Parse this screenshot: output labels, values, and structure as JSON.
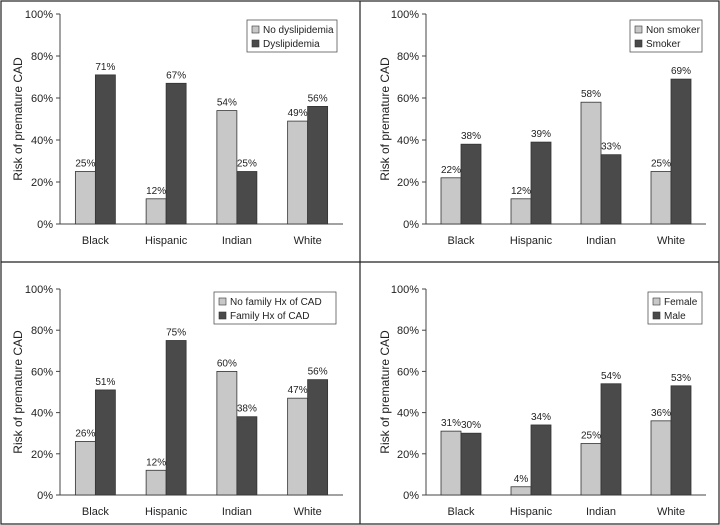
{
  "colors": {
    "series1": "#c8c8c8",
    "series2": "#4a4a4a"
  },
  "chart_data": [
    {
      "type": "bar",
      "categories": [
        "Black",
        "Hispanic",
        "Indian",
        "White"
      ],
      "series": [
        {
          "name": "No dyslipidemia",
          "values": [
            25,
            12,
            54,
            49
          ],
          "labels": [
            "25%",
            "12%",
            "54%",
            "49%"
          ]
        },
        {
          "name": "Dyslipidemia",
          "values": [
            71,
            67,
            25,
            56
          ],
          "labels": [
            "71%",
            "67%",
            "25%",
            "56%"
          ]
        }
      ],
      "ylabel": "Risk of premature CAD",
      "ylim": [
        0,
        100
      ],
      "yticks": [
        "0%",
        "20%",
        "40%",
        "60%",
        "80%",
        "100%"
      ],
      "legend": "top-right"
    },
    {
      "type": "bar",
      "categories": [
        "Black",
        "Hispanic",
        "Indian",
        "White"
      ],
      "series": [
        {
          "name": "Non smoker",
          "values": [
            22,
            12,
            58,
            25
          ],
          "labels": [
            "22%",
            "12%",
            "58%",
            "25%"
          ]
        },
        {
          "name": "Smoker",
          "values": [
            38,
            39,
            33,
            69
          ],
          "labels": [
            "38%",
            "39%",
            "33%",
            "69%"
          ]
        }
      ],
      "ylabel": "Risk of premature CAD",
      "ylim": [
        0,
        100
      ],
      "yticks": [
        "0%",
        "20%",
        "40%",
        "60%",
        "80%",
        "100%"
      ],
      "legend": "top-right"
    },
    {
      "type": "bar",
      "categories": [
        "Black",
        "Hispanic",
        "Indian",
        "White"
      ],
      "series": [
        {
          "name": "No family Hx of CAD",
          "values": [
            26,
            12,
            60,
            47
          ],
          "labels": [
            "26%",
            "12%",
            "60%",
            "47%"
          ]
        },
        {
          "name": "Family Hx of CAD",
          "values": [
            51,
            75,
            38,
            56
          ],
          "labels": [
            "51%",
            "75%",
            "38%",
            "56%"
          ]
        }
      ],
      "ylabel": "Risk of premature CAD",
      "ylim": [
        0,
        100
      ],
      "yticks": [
        "0%",
        "20%",
        "40%",
        "60%",
        "80%",
        "100%"
      ],
      "legend": "top-right"
    },
    {
      "type": "bar",
      "categories": [
        "Black",
        "Hispanic",
        "Indian",
        "White"
      ],
      "series": [
        {
          "name": "Female",
          "values": [
            31,
            4,
            25,
            36
          ],
          "labels": [
            "31%",
            "4%",
            "25%",
            "36%"
          ]
        },
        {
          "name": "Male",
          "values": [
            30,
            34,
            54,
            53
          ],
          "labels": [
            "30%",
            "34%",
            "54%",
            "53%"
          ]
        }
      ],
      "ylabel": "Risk of premature CAD",
      "ylim": [
        0,
        100
      ],
      "yticks": [
        "0%",
        "20%",
        "40%",
        "60%",
        "80%",
        "100%"
      ],
      "legend": "top-right"
    }
  ]
}
